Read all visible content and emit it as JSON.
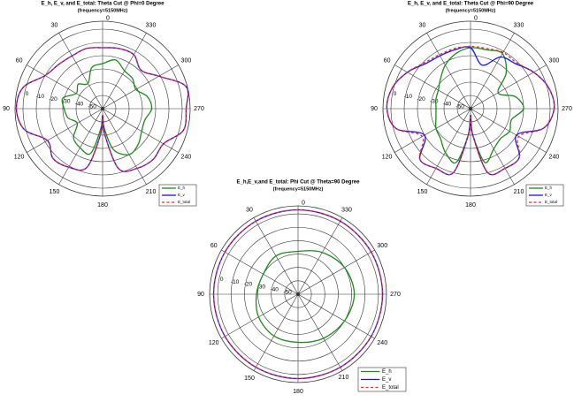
{
  "colors": {
    "E_h": "#1a8c1a",
    "E_v": "#1414ff",
    "E_total": "#ff2222",
    "grid": "#333333"
  },
  "chart_data": [
    {
      "type": "polar-line",
      "title": "E_h, E_v, and E_total: Theta Cut @ Phi=0 Degree",
      "subtitle": "(frequency=5150MHz)",
      "angle_direction": "counterclockwise, 0 at top",
      "angle_ticks": [
        "0",
        "30",
        "60",
        "90",
        "120",
        "150",
        "180",
        "210",
        "240",
        "270",
        "300",
        "330"
      ],
      "radial_ticks": [
        "0",
        "-10",
        "-20",
        "-30",
        "-40",
        "-50"
      ],
      "rlim": [
        -60,
        6
      ],
      "legend": [
        "E_h",
        "E_v",
        "E_total"
      ],
      "legend_position": "bottom-right",
      "angles": [
        0,
        15,
        30,
        45,
        60,
        75,
        90,
        105,
        120,
        135,
        150,
        165,
        175,
        180,
        185,
        195,
        210,
        225,
        240,
        255,
        270,
        285,
        300,
        315,
        330,
        345
      ],
      "series": [
        {
          "name": "E_h",
          "values": [
            -26,
            -28,
            -38,
            -34,
            -37,
            -29,
            -31,
            -33,
            -38,
            -29,
            -26,
            -25,
            -45,
            -55,
            -45,
            -28,
            -20,
            -22,
            -26,
            -27,
            -23,
            -25,
            -31,
            -28,
            -27,
            -22
          ]
        },
        {
          "name": "E_v",
          "values": [
            -14,
            -13,
            -14,
            -13,
            -10,
            2,
            5,
            1,
            -12,
            -7,
            -9,
            -14,
            -40,
            -55,
            -40,
            -13,
            -8,
            -6,
            -7,
            3,
            3,
            5,
            -11,
            -19,
            -13,
            -13
          ]
        },
        {
          "name": "E_total",
          "values": [
            -14,
            -13,
            -14,
            -13,
            -10,
            2,
            5,
            1,
            -12,
            -7,
            -9,
            -14,
            -40,
            -55,
            -40,
            -13,
            -8,
            -6,
            -7,
            3,
            3,
            5,
            -11,
            -19,
            -13,
            -13
          ]
        }
      ]
    },
    {
      "type": "polar-line",
      "title": "E_h, E_v, and E_total: Theta Cut @ Phi=90 Degree",
      "subtitle": "(frequency=5150MHz)",
      "angle_direction": "counterclockwise, 0 at top",
      "angle_ticks": [
        "0",
        "30",
        "60",
        "90",
        "120",
        "150",
        "180",
        "210",
        "240",
        "270",
        "300",
        "330"
      ],
      "radial_ticks": [
        "0",
        "-10",
        "-20",
        "-30",
        "-40",
        "-50"
      ],
      "rlim": [
        -60,
        6
      ],
      "legend": [
        "E_h",
        "E_v",
        "E_total"
      ],
      "legend_position": "bottom-right",
      "angles": [
        0,
        15,
        30,
        45,
        60,
        75,
        90,
        105,
        120,
        135,
        150,
        165,
        175,
        180,
        185,
        195,
        210,
        225,
        240,
        255,
        270,
        285,
        300,
        315,
        330,
        345
      ],
      "series": [
        {
          "name": "E_h",
          "values": [
            -14,
            -17,
            -22,
            -28,
            -32,
            -33,
            -34,
            -33,
            -30,
            -28,
            -22,
            -18,
            -40,
            -55,
            -40,
            -18,
            -25,
            -28,
            -26,
            -28,
            -20,
            -25,
            -36,
            -22,
            -12,
            -14
          ]
        },
        {
          "name": "E_v",
          "values": [
            -14,
            -14,
            -14,
            -12,
            -5,
            1,
            3,
            -2,
            -20,
            -6,
            -8,
            -10,
            -40,
            -55,
            -40,
            -10,
            -8,
            -8,
            -20,
            -3,
            3,
            1,
            -5,
            -12,
            -15,
            -26
          ]
        },
        {
          "name": "E_total",
          "values": [
            -13,
            -13,
            -13,
            -11,
            -5,
            1,
            3,
            -2,
            -18,
            -6,
            -8,
            -10,
            -40,
            -55,
            -40,
            -10,
            -8,
            -8,
            -18,
            -3,
            3,
            1,
            -5,
            -11,
            -11,
            -13
          ]
        }
      ]
    },
    {
      "type": "polar-line",
      "title": "E_h,E_v,and E_total: Phi Cut @ Theta=90 Degree",
      "subtitle": "(frequency=5150MHz)",
      "angle_direction": "counterclockwise, 0 at top",
      "angle_ticks": [
        "0",
        "30",
        "60",
        "90",
        "120",
        "150",
        "180",
        "210",
        "240",
        "270",
        "300",
        "330"
      ],
      "radial_ticks": [
        "0",
        "-10",
        "-20",
        "-30",
        "-40",
        "-50"
      ],
      "rlim": [
        -60,
        6
      ],
      "legend": [
        "E_h",
        "E_v",
        "E_total"
      ],
      "legend_position": "bottom-right",
      "angles": [
        0,
        30,
        60,
        90,
        120,
        150,
        180,
        210,
        240,
        270,
        300,
        330
      ],
      "series": [
        {
          "name": "E_h",
          "values": [
            -28,
            -27,
            -30,
            -29,
            -26,
            -24,
            -24,
            -22,
            -20,
            -18,
            -20,
            -24
          ]
        },
        {
          "name": "E_v",
          "values": [
            3,
            3,
            3,
            3,
            3,
            3,
            3,
            3,
            3,
            3,
            3,
            3
          ]
        },
        {
          "name": "E_total",
          "values": [
            3,
            3,
            3,
            3,
            3,
            3,
            3,
            3,
            3,
            3,
            3,
            3
          ]
        }
      ]
    }
  ]
}
